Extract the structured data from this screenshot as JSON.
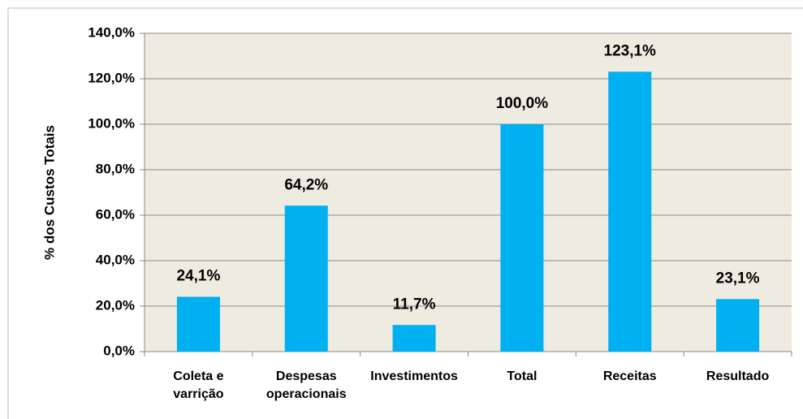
{
  "chart_data": {
    "type": "bar",
    "y_axis_label": "% dos Custos Totais",
    "categories": [
      "Coleta e varrição",
      "Despesas operacionais",
      "Investimentos",
      "Total",
      "Receitas",
      "Resultado"
    ],
    "values": [
      24.1,
      64.2,
      11.7,
      100.0,
      123.1,
      23.1
    ],
    "value_labels": [
      "24,1%",
      "64,2%",
      "11,7%",
      "100,0%",
      "123,1%",
      "23,1%"
    ],
    "color": "#00b0f0",
    "ylim": [
      0,
      140
    ],
    "yticks": [
      {
        "value": 0,
        "label": "0,0%"
      },
      {
        "value": 20,
        "label": "20,0%"
      },
      {
        "value": 40,
        "label": "40,0%"
      },
      {
        "value": 60,
        "label": "60,0%"
      },
      {
        "value": 80,
        "label": "80,0%"
      },
      {
        "value": 100,
        "label": "100,0%"
      },
      {
        "value": 120,
        "label": "120,0%"
      },
      {
        "value": 140,
        "label": "140,0%"
      }
    ],
    "grid": true
  }
}
